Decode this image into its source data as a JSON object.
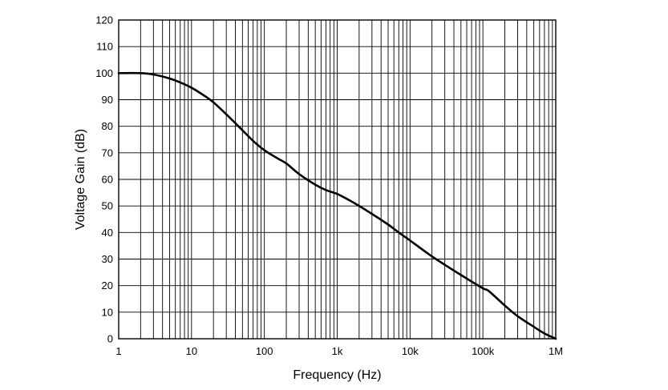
{
  "chart_data": {
    "type": "line",
    "title": "",
    "xlabel": "Frequency (Hz)",
    "ylabel": "Voltage Gain (dB)",
    "x_scale": "log",
    "xlim": [
      1,
      1000000
    ],
    "ylim": [
      0,
      120
    ],
    "grid": true,
    "x_ticks": [
      {
        "value": 1,
        "label": "1"
      },
      {
        "value": 10,
        "label": "10"
      },
      {
        "value": 100,
        "label": "100"
      },
      {
        "value": 1000,
        "label": "1k"
      },
      {
        "value": 10000,
        "label": "10k"
      },
      {
        "value": 100000,
        "label": "100k"
      },
      {
        "value": 1000000,
        "label": "1M"
      }
    ],
    "y_ticks": [
      {
        "value": 0,
        "label": "0"
      },
      {
        "value": 10,
        "label": "10"
      },
      {
        "value": 20,
        "label": "20"
      },
      {
        "value": 30,
        "label": "30"
      },
      {
        "value": 40,
        "label": "40"
      },
      {
        "value": 50,
        "label": "50"
      },
      {
        "value": 60,
        "label": "60"
      },
      {
        "value": 70,
        "label": "70"
      },
      {
        "value": 80,
        "label": "80"
      },
      {
        "value": 90,
        "label": "90"
      },
      {
        "value": 100,
        "label": "100"
      },
      {
        "value": 110,
        "label": "110"
      },
      {
        "value": 120,
        "label": "120"
      }
    ],
    "series": [
      {
        "color": "#000000",
        "x": [
          1,
          2,
          3,
          5,
          7,
          10,
          15,
          20,
          30,
          50,
          70,
          100,
          150,
          200,
          300,
          500,
          700,
          1000,
          1500,
          2000,
          3000,
          5000,
          7000,
          10000,
          20000,
          50000,
          100000,
          120000,
          200000,
          300000,
          500000,
          700000,
          1000000
        ],
        "y": [
          100,
          100,
          99.5,
          98,
          96.5,
          94.5,
          91.5,
          89,
          84.5,
          78.5,
          74.5,
          71,
          68,
          66,
          62,
          58,
          56,
          54.5,
          52,
          50,
          47,
          43,
          40,
          37,
          31,
          24,
          19,
          18,
          12.5,
          8.5,
          4.5,
          2,
          0
        ]
      }
    ]
  }
}
